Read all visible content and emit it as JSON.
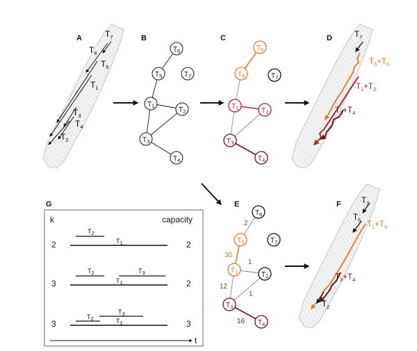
{
  "panels": {
    "A": {
      "letter": "A"
    },
    "B": {
      "letter": "B"
    },
    "C": {
      "letter": "C"
    },
    "D": {
      "letter": "D"
    },
    "E": {
      "letter": "E"
    },
    "F": {
      "letter": "F"
    },
    "G": {
      "letter": "G"
    }
  },
  "trip_symbol": "T",
  "panel_a": {
    "trips": [
      "7",
      "6",
      "5",
      "1",
      "3",
      "4",
      "2"
    ]
  },
  "panel_b": {
    "nodes": [
      "6",
      "5",
      "7",
      "1",
      "2",
      "3",
      "4"
    ]
  },
  "panel_c": {
    "nodes": [
      "6",
      "5",
      "7",
      "1",
      "2",
      "3",
      "4"
    ]
  },
  "panel_d": {
    "trip": "7",
    "merged": [
      {
        "a": "5",
        "b": "6",
        "color": "#e07b2a"
      },
      {
        "a": "1",
        "b": "2",
        "color": "#b5242a"
      },
      {
        "a": "3",
        "b": "4",
        "color": "#6e1414"
      }
    ]
  },
  "panel_e": {
    "nodes": [
      "6",
      "5",
      "7",
      "1",
      "2",
      "3",
      "4"
    ],
    "edge_weights": {
      "w_6_5": "2",
      "w_5_1": "30",
      "w_1_2": "1",
      "w_1_3": "12",
      "w_2_3": "1",
      "w_3_4": "16"
    }
  },
  "panel_f": {
    "trip_top": "7",
    "trip_6": "6",
    "trip_2": "2",
    "merged": [
      {
        "a": "1",
        "b": "5",
        "color": "#e07b2a"
      },
      {
        "a": "3",
        "b": "4",
        "color": "#6e1414"
      }
    ]
  },
  "panel_g": {
    "k_header": "k",
    "capacity_header": "capacity",
    "time_label": "t",
    "rows": [
      {
        "k": "2",
        "capacity": "2",
        "upper": [
          "2"
        ],
        "lower": "1"
      },
      {
        "k": "3",
        "capacity": "2",
        "upper": [
          "2",
          "3"
        ],
        "lower": "1"
      },
      {
        "k": "3",
        "capacity": "3",
        "upper": [
          "2",
          "3"
        ],
        "lower": "1"
      }
    ]
  },
  "colors": {
    "orange": "#e07b2a",
    "red": "#b5242a",
    "darkred": "#6e1414",
    "black": "#111111",
    "map_fill": "#f4f4f4",
    "map_grid": "#c9c9c9"
  }
}
